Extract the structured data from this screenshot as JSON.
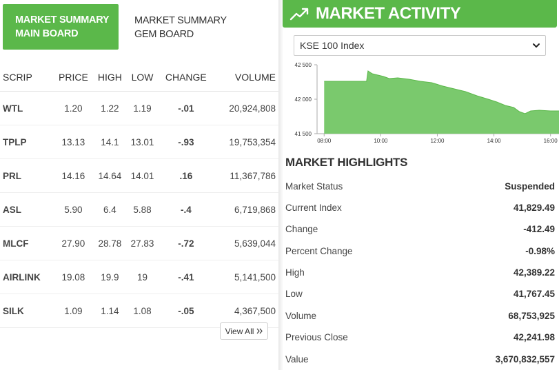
{
  "tabs": {
    "main_board_line1": "MARKET SUMMARY",
    "main_board_line2": "MAIN BOARD",
    "gem_board_line1": "MARKET SUMMARY",
    "gem_board_line2": "GEM BOARD"
  },
  "table": {
    "headers": {
      "scrip": "SCRIP",
      "price": "PRICE",
      "high": "HIGH",
      "low": "LOW",
      "change": "CHANGE",
      "volume": "VOLUME"
    },
    "rows": [
      {
        "scrip": "WTL",
        "price": "1.20",
        "high": "1.22",
        "low": "1.19",
        "change": "-.01",
        "volume": "20,924,808",
        "dir": "neg"
      },
      {
        "scrip": "TPLP",
        "price": "13.13",
        "high": "14.1",
        "low": "13.01",
        "change": "-.93",
        "volume": "19,753,354",
        "dir": "neg"
      },
      {
        "scrip": "PRL",
        "price": "14.16",
        "high": "14.64",
        "low": "14.01",
        "change": ".16",
        "volume": "11,367,786",
        "dir": "pos"
      },
      {
        "scrip": "ASL",
        "price": "5.90",
        "high": "6.4",
        "low": "5.88",
        "change": "-.4",
        "volume": "6,719,868",
        "dir": "neg"
      },
      {
        "scrip": "MLCF",
        "price": "27.90",
        "high": "28.78",
        "low": "27.83",
        "change": "-.72",
        "volume": "5,639,044",
        "dir": "neg"
      },
      {
        "scrip": "AIRLINK",
        "price": "19.08",
        "high": "19.9",
        "low": "19",
        "change": "-.41",
        "volume": "5,141,500",
        "dir": "neg"
      },
      {
        "scrip": "SILK",
        "price": "1.09",
        "high": "1.14",
        "low": "1.08",
        "change": "-.05",
        "volume": "4,367,500",
        "dir": "neg"
      }
    ],
    "view_all_label": "View All"
  },
  "activity": {
    "title": "MARKET ACTIVITY",
    "icon": "trend-up-icon",
    "index_select_value": "KSE 100 Index"
  },
  "chart_data": {
    "type": "area",
    "color": "#7ac96d",
    "line_color": "#5bb84a",
    "ylim": [
      41500,
      42500
    ],
    "yticks": [
      "42 500",
      "42 000",
      "41 500"
    ],
    "yticks_values": [
      42500,
      42000,
      41500
    ],
    "xticks": [
      "08:00",
      "10:00",
      "12:00",
      "14:00",
      "16:00"
    ],
    "xticks_hours": [
      8,
      10,
      12,
      14,
      16
    ],
    "x_hours": [
      8.0,
      9.0,
      9.5,
      9.55,
      9.7,
      9.9,
      10.1,
      10.3,
      10.6,
      11.0,
      11.4,
      11.8,
      12.2,
      12.6,
      13.0,
      13.4,
      13.8,
      14.1,
      14.4,
      14.7,
      14.9,
      15.1,
      15.3,
      15.6,
      16.0,
      16.3,
      16.8
    ],
    "y_values": [
      42260,
      42260,
      42260,
      42410,
      42370,
      42350,
      42330,
      42300,
      42310,
      42290,
      42260,
      42240,
      42190,
      42150,
      42110,
      42050,
      42000,
      41960,
      41910,
      41880,
      41820,
      41790,
      41830,
      41840,
      41830,
      41830,
      41830
    ]
  },
  "highlights": {
    "title": "MARKET HIGHLIGHTS",
    "items": [
      {
        "label": "Market Status",
        "value": "Suspended"
      },
      {
        "label": "Current Index",
        "value": "41,829.49"
      },
      {
        "label": "Change",
        "value": "-412.49"
      },
      {
        "label": "Percent Change",
        "value": "-0.98%"
      },
      {
        "label": "High",
        "value": "42,389.22"
      },
      {
        "label": "Low",
        "value": "41,767.45"
      },
      {
        "label": "Volume",
        "value": "68,753,925"
      },
      {
        "label": "Previous Close",
        "value": "42,241.98"
      },
      {
        "label": "Value",
        "value": "3,670,832,557"
      }
    ]
  }
}
